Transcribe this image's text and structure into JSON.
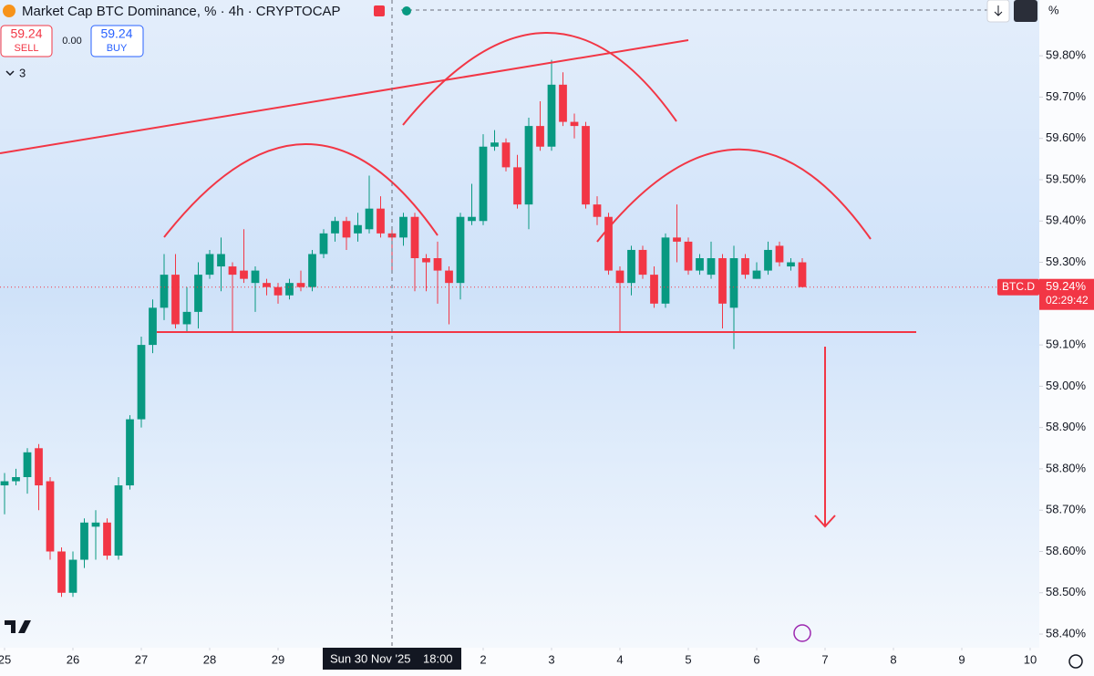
{
  "ui": {
    "title": "Market Cap BTC Dominance, % · 4h · CRYPTOCAP",
    "sell": {
      "price": "59.24",
      "label": "SELL"
    },
    "spread": "0.00",
    "buy": {
      "price": "59.24",
      "label": "BUY"
    },
    "indicators": "3",
    "scale_button": "%",
    "crosshair": {
      "date": "Sun 30 Nov '25",
      "time": "18:00"
    }
  },
  "chart_data": {
    "type": "candlestick",
    "up_color": "#089981",
    "down_color": "#f23645",
    "grid": false,
    "x": [
      0,
      1,
      2,
      3,
      4,
      5,
      6,
      7,
      8,
      9,
      10,
      11,
      12,
      13,
      14,
      15,
      16,
      17,
      18,
      19,
      20,
      21,
      22,
      23,
      24,
      25,
      26,
      27,
      28,
      29,
      30,
      31,
      32,
      33,
      34,
      35,
      36,
      37,
      38,
      39,
      40,
      41,
      42,
      43,
      44,
      45,
      46,
      47,
      48,
      49,
      50,
      51,
      52,
      53,
      54,
      55,
      56,
      57,
      58,
      59,
      60,
      61,
      62,
      63,
      64,
      65,
      66,
      67,
      68,
      69,
      70
    ],
    "open": [
      58.76,
      58.77,
      58.78,
      58.85,
      58.77,
      58.6,
      58.5,
      58.58,
      58.66,
      58.67,
      58.59,
      58.76,
      58.92,
      59.1,
      59.19,
      59.27,
      59.15,
      59.18,
      59.27,
      59.29,
      59.29,
      59.28,
      59.25,
      59.25,
      59.24,
      59.22,
      59.25,
      59.24,
      59.32,
      59.37,
      59.4,
      59.37,
      59.38,
      59.43,
      59.37,
      59.36,
      59.41,
      59.31,
      59.31,
      59.28,
      59.25,
      59.4,
      59.4,
      59.58,
      59.59,
      59.53,
      59.44,
      59.63,
      59.58,
      59.73,
      59.64,
      59.63,
      59.44,
      59.41,
      59.28,
      59.25,
      59.33,
      59.27,
      59.2,
      59.36,
      59.35,
      59.28,
      59.27,
      59.31,
      59.19,
      59.31,
      59.26,
      59.28,
      59.34,
      59.29,
      59.3
    ],
    "high": [
      58.79,
      58.8,
      58.85,
      58.86,
      58.78,
      58.61,
      58.6,
      58.68,
      58.7,
      58.68,
      58.78,
      58.93,
      59.12,
      59.21,
      59.32,
      59.32,
      59.24,
      59.3,
      59.33,
      59.36,
      59.3,
      59.38,
      59.29,
      59.26,
      59.25,
      59.26,
      59.28,
      59.33,
      59.38,
      59.41,
      59.41,
      59.42,
      59.51,
      59.46,
      59.38,
      59.42,
      59.42,
      59.32,
      59.35,
      59.29,
      59.42,
      59.49,
      59.61,
      59.62,
      59.6,
      59.56,
      59.65,
      59.69,
      59.79,
      59.76,
      59.66,
      59.64,
      59.46,
      59.42,
      59.29,
      59.34,
      59.34,
      59.29,
      59.37,
      59.44,
      59.36,
      59.32,
      59.35,
      59.32,
      59.34,
      59.32,
      59.3,
      59.35,
      59.35,
      59.31,
      59.31
    ],
    "low": [
      58.69,
      58.76,
      58.74,
      58.7,
      58.58,
      58.49,
      58.49,
      58.56,
      58.58,
      58.58,
      58.58,
      58.75,
      58.9,
      59.08,
      59.16,
      59.14,
      59.13,
      59.14,
      59.26,
      59.23,
      59.13,
      59.25,
      59.18,
      59.22,
      59.2,
      59.21,
      59.23,
      59.23,
      59.31,
      59.35,
      59.33,
      59.35,
      59.37,
      59.36,
      59.28,
      59.34,
      59.23,
      59.23,
      59.2,
      59.15,
      59.21,
      59.39,
      59.39,
      59.57,
      59.52,
      59.43,
      59.38,
      59.57,
      59.57,
      59.63,
      59.6,
      59.43,
      59.39,
      59.27,
      59.13,
      59.22,
      59.26,
      59.19,
      59.19,
      59.3,
      59.27,
      59.27,
      59.26,
      59.14,
      59.09,
      59.26,
      59.26,
      59.27,
      59.29,
      59.28,
      59.24
    ],
    "close": [
      58.77,
      58.78,
      58.84,
      58.76,
      58.6,
      58.5,
      58.58,
      58.67,
      58.67,
      58.59,
      58.76,
      58.92,
      59.1,
      59.19,
      59.27,
      59.15,
      59.18,
      59.27,
      59.32,
      59.32,
      59.27,
      59.26,
      59.28,
      59.24,
      59.22,
      59.25,
      59.24,
      59.32,
      59.37,
      59.4,
      59.36,
      59.39,
      59.43,
      59.37,
      59.36,
      59.41,
      59.31,
      59.3,
      59.28,
      59.25,
      59.41,
      59.41,
      59.58,
      59.59,
      59.53,
      59.44,
      59.63,
      59.58,
      59.73,
      59.64,
      59.63,
      59.44,
      59.41,
      59.28,
      59.25,
      59.33,
      59.27,
      59.2,
      59.36,
      59.35,
      59.28,
      59.31,
      59.31,
      59.2,
      59.31,
      59.27,
      59.28,
      59.33,
      59.3,
      59.3,
      59.24
    ],
    "xlim": [
      -0.4,
      90.8
    ],
    "xticks": [
      {
        "value": 0,
        "label": "25"
      },
      {
        "value": 6,
        "label": "26"
      },
      {
        "value": 12,
        "label": "27"
      },
      {
        "value": 18,
        "label": "28"
      },
      {
        "value": 24,
        "label": "29"
      },
      {
        "value": 42,
        "label": "2"
      },
      {
        "value": 48,
        "label": "3"
      },
      {
        "value": 54,
        "label": "4"
      },
      {
        "value": 60,
        "label": "5"
      },
      {
        "value": 66,
        "label": "6"
      },
      {
        "value": 72,
        "label": "7"
      },
      {
        "value": 78,
        "label": "8"
      },
      {
        "value": 84,
        "label": "9"
      },
      {
        "value": 90,
        "label": "10"
      }
    ],
    "ylim": [
      58.367,
      59.935
    ],
    "yticks": [
      {
        "value": 58.4,
        "label": "58.40%"
      },
      {
        "value": 58.5,
        "label": "58.50%"
      },
      {
        "value": 58.6,
        "label": "58.60%"
      },
      {
        "value": 58.7,
        "label": "58.70%"
      },
      {
        "value": 58.8,
        "label": "58.80%"
      },
      {
        "value": 58.9,
        "label": "58.90%"
      },
      {
        "value": 59.0,
        "label": "59.00%"
      },
      {
        "value": 59.1,
        "label": "59.10%"
      },
      {
        "value": 59.2,
        "label": "59.20%"
      },
      {
        "value": 59.3,
        "label": "59.30%"
      },
      {
        "value": 59.4,
        "label": "59.40%"
      },
      {
        "value": 59.5,
        "label": "59.50%"
      },
      {
        "value": 59.6,
        "label": "59.60%"
      },
      {
        "value": 59.7,
        "label": "59.70%"
      },
      {
        "value": 59.8,
        "label": "59.80%"
      }
    ],
    "last_price": {
      "symbol": "BTC.D",
      "value": 59.24,
      "label": "59.24%",
      "countdown": "02:29:42"
    }
  }
}
